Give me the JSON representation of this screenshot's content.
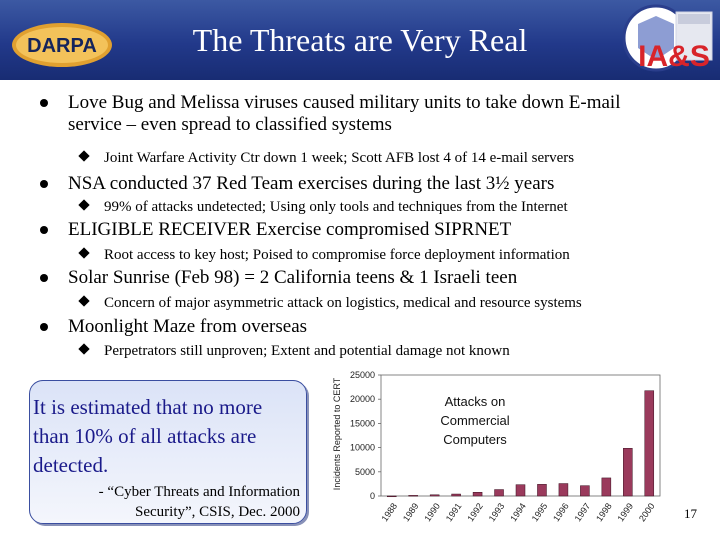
{
  "header": {
    "title": "The Threats are Very Real",
    "darpa_logo_text": "DARPA",
    "ias_logo_text": "IA&S",
    "colors": {
      "banner": "#22398a",
      "darpa_gold": "#e0a030",
      "ias_red": "#d8242a"
    }
  },
  "bullets": [
    {
      "lines": [
        "Love Bug and Melissa viruses caused military units to take down E-mail",
        "service – even spread to classified systems"
      ],
      "sub": "Joint Warfare Activity Ctr down 1 week; Scott AFB lost 4 of 14 e-mail servers"
    },
    {
      "lines": [
        "NSA conducted 37 Red Team exercises during the last 3½ years"
      ],
      "sub": "99% of attacks undetected; Using only tools and techniques from the Internet"
    },
    {
      "lines": [
        "ELIGIBLE RECEIVER Exercise compromised SIPRNET"
      ],
      "sub": "Root access to key host; Poised to compromise force deployment information"
    },
    {
      "lines": [
        "Solar Sunrise (Feb 98) = 2 California teens & 1 Israeli teen"
      ],
      "sub": "Concern of major asymmetric attack on logistics, medical and resource systems"
    },
    {
      "lines": [
        "Moonlight Maze from overseas"
      ],
      "sub": "Perpetrators still unproven; Extent and potential damage not known"
    }
  ],
  "quote": {
    "main_lines": [
      "It is estimated that no more",
      "than 10% of all attacks are",
      "detected."
    ],
    "source_lines": [
      "- “Cyber Threats and Information",
      "Security”, CSIS, Dec. 2000"
    ]
  },
  "chart_data": {
    "type": "bar",
    "title": "",
    "ylabel": "Incidents Reported to CERT",
    "xlabel": "",
    "annotation": [
      "Attacks on",
      "Commercial",
      "Computers"
    ],
    "categories": [
      "1988",
      "1989",
      "1990",
      "1991",
      "1992",
      "1993",
      "1994",
      "1995",
      "1996",
      "1997",
      "1998",
      "1999",
      "2000"
    ],
    "values": [
      6,
      132,
      252,
      406,
      773,
      1334,
      2340,
      2412,
      2573,
      2134,
      3734,
      9859,
      21756
    ],
    "ylim": [
      0,
      25000
    ],
    "yticks": [
      "0",
      "5000",
      "10000",
      "15000",
      "20000",
      "25000"
    ],
    "grid": false,
    "bar_color": "#9a3a5c"
  },
  "page_number": "17"
}
